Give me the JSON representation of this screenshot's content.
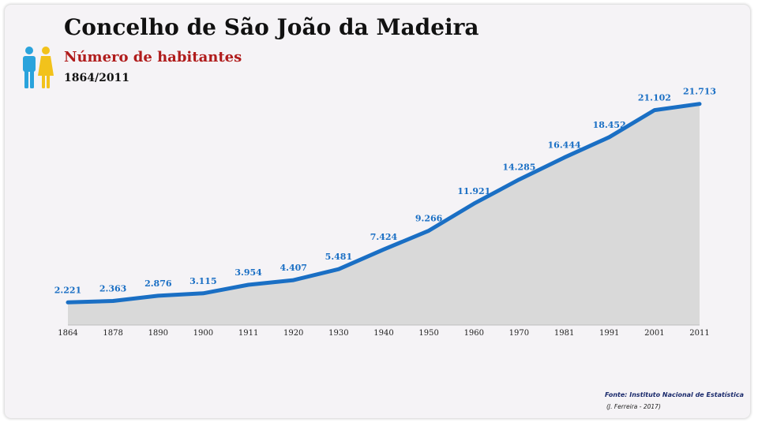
{
  "header": {
    "title": "Concelho de São João da Madeira",
    "subtitle": "Número de habitantes",
    "period": "1864/2011"
  },
  "icons": {
    "people": "male-female-people-icon"
  },
  "footer": {
    "source": "Fonte: Instituto Nacional de Estatística",
    "author": "(J. Ferreira - 2017)"
  },
  "colors": {
    "line": "#1a6fc4",
    "area": "#d9d9d9",
    "label": "#1a6fc4",
    "male": "#2aa3dc",
    "female": "#f2c21b",
    "subtitle": "#b01c1c"
  },
  "chart_data": {
    "type": "area",
    "title": "Concelho de São João da Madeira",
    "subtitle": "Número de habitantes",
    "categories": [
      "1864",
      "1878",
      "1890",
      "1900",
      "1911",
      "1920",
      "1930",
      "1940",
      "1950",
      "1960",
      "1970",
      "1981",
      "1991",
      "2001",
      "2011"
    ],
    "values": [
      2221,
      2363,
      2876,
      3115,
      3954,
      4407,
      5481,
      7424,
      9266,
      11921,
      14285,
      16444,
      18452,
      21102,
      21713
    ],
    "data_labels": [
      "2.221",
      "2.363",
      "2.876",
      "3.115",
      "3.954",
      "4.407",
      "5.481",
      "7.424",
      "9.266",
      "11.921",
      "14.285",
      "16.444",
      "18.452",
      "21.102",
      "21.713"
    ],
    "ylim": [
      0,
      22000
    ],
    "grid": false,
    "legend": "none"
  }
}
